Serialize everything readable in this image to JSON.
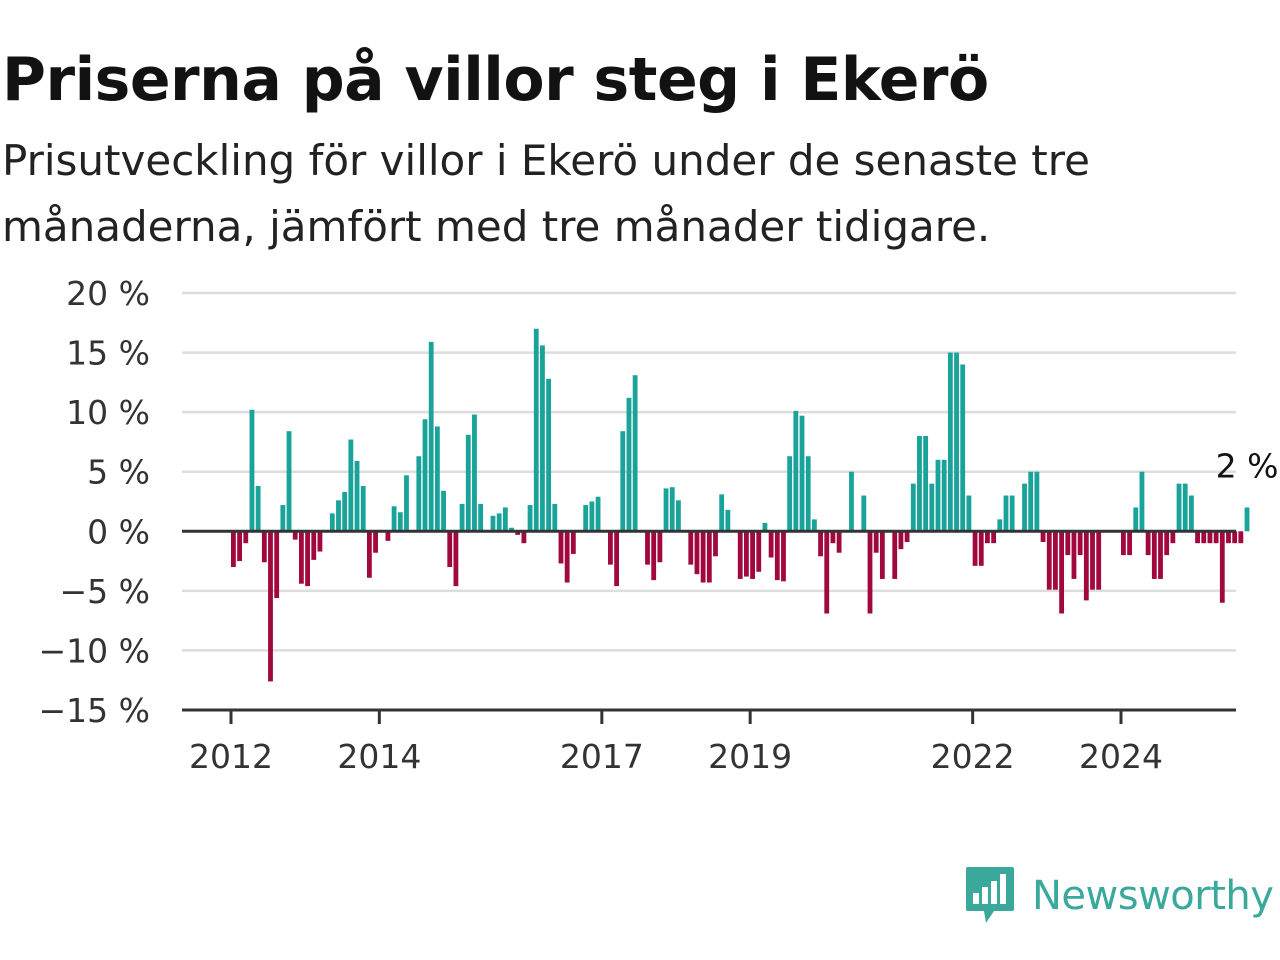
{
  "title": "Priserna på villor steg i Ekerö",
  "subtitle": "Prisutveckling för villor i Ekerö under de senaste tre månaderna, jämfört med tre månader tidigare.",
  "logo": {
    "name": "Newsworthy",
    "icon": "newsworthy-logo-icon",
    "color": "#3aa99c"
  },
  "chart_data": {
    "type": "bar",
    "colors": {
      "positive": "#1aa39a",
      "negative": "#a1093e",
      "grid": "#dddddd",
      "zero_line": "#333333",
      "axis": "#333333"
    },
    "grid": true,
    "ylim": [
      -15,
      20
    ],
    "yticks": [
      20,
      15,
      10,
      5,
      0,
      -5,
      -10,
      -15
    ],
    "ytick_labels": [
      "20 %",
      "15 %",
      "10 %",
      "5 %",
      "0 %",
      "−5 %",
      "−10 %",
      "−15 %"
    ],
    "xticks": [
      {
        "label": "2012",
        "year": 2012
      },
      {
        "label": "2014",
        "year": 2014
      },
      {
        "label": "2017",
        "year": 2017
      },
      {
        "label": "2019",
        "year": 2019
      },
      {
        "label": "2022",
        "year": 2022
      },
      {
        "label": "2024",
        "year": 2024
      }
    ],
    "x_start": "2012-01",
    "x_end": "2025-12",
    "values": [
      -3,
      -2.5,
      -1,
      10.2,
      3.8,
      -2.6,
      -12.6,
      -5.6,
      2.2,
      8.4,
      -0.7,
      -4.4,
      -4.6,
      -2.4,
      -1.7,
      0,
      1.5,
      2.6,
      3.3,
      7.7,
      5.9,
      3.8,
      -3.9,
      -1.8,
      0,
      -0.8,
      2.1,
      1.6,
      4.7,
      0,
      6.3,
      9.4,
      15.9,
      8.8,
      3.4,
      -3,
      -4.6,
      2.3,
      8.1,
      9.8,
      2.3,
      0,
      1.3,
      1.5,
      2,
      0.3,
      -0.3,
      -1,
      2.2,
      17,
      15.6,
      12.8,
      2.3,
      -2.7,
      -4.3,
      -1.9,
      0,
      2.2,
      2.5,
      2.9,
      0,
      -2.8,
      -4.6,
      8.4,
      11.2,
      13.1,
      0,
      -2.8,
      -4.1,
      -2.6,
      3.6,
      3.7,
      2.6,
      0,
      -2.8,
      -3.6,
      -4.3,
      -4.3,
      -2.1,
      3.1,
      1.8,
      0,
      -4,
      -3.8,
      -4,
      -3.4,
      0.7,
      -2.2,
      -4.1,
      -4.2,
      6.3,
      10.1,
      9.7,
      6.3,
      1,
      -2.1,
      -6.9,
      -1,
      -1.8,
      0,
      5,
      0,
      3,
      -6.9,
      -1.8,
      -4,
      0,
      -4,
      -1.5,
      -0.9,
      4,
      8,
      8,
      4,
      6,
      6,
      15,
      15,
      14,
      3,
      -2.9,
      -2.9,
      -1,
      -1,
      1,
      3,
      3,
      0,
      4,
      5,
      5,
      -0.9,
      -4.9,
      -4.9,
      -6.9,
      -2,
      -4,
      -2,
      -5.8,
      -4.9,
      -4.9,
      0,
      0,
      0,
      -2,
      -2,
      2,
      5,
      -2,
      -4,
      -4,
      -2,
      -1,
      4,
      4,
      3,
      -1,
      -1,
      -1,
      -1,
      -6,
      -1,
      -1,
      -1,
      2
    ],
    "annotation": {
      "label": "2 %",
      "value": 2
    }
  }
}
